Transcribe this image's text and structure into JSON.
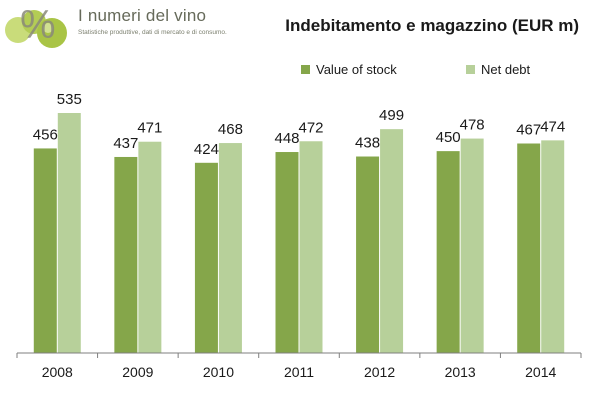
{
  "logo": {
    "title": "I numeri del vino",
    "subtitle": "Statistiche produttive, dati di mercato e di consumo.",
    "glyph": "%"
  },
  "chart_data": {
    "type": "bar",
    "title": "Indebitamento e magazzino (EUR m)",
    "categories": [
      "2008",
      "2009",
      "2010",
      "2011",
      "2012",
      "2013",
      "2014"
    ],
    "series": [
      {
        "name": "Value of stock",
        "color": "#85a64a",
        "values": [
          456,
          437,
          424,
          448,
          438,
          450,
          467
        ]
      },
      {
        "name": "Net debt",
        "color": "#b7d09a",
        "values": [
          535,
          471,
          468,
          472,
          499,
          478,
          474
        ]
      }
    ],
    "ylim": [
      0,
      570
    ],
    "grid": false,
    "legend": "top-right",
    "xlabel": "",
    "ylabel": ""
  }
}
